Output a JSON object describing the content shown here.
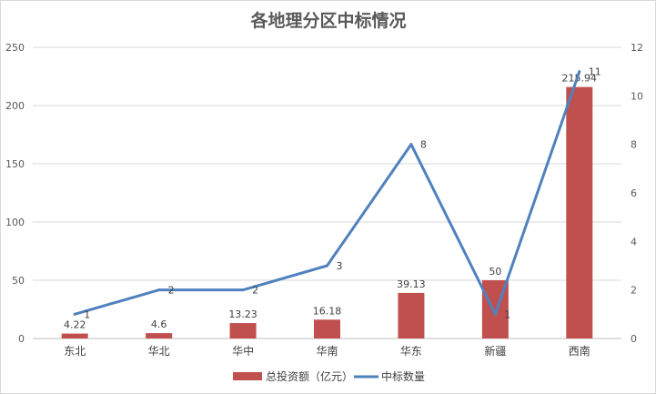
{
  "chart_data": {
    "type": "bar",
    "title": "各地理分区中标情况",
    "categories": [
      "东北",
      "华北",
      "华中",
      "华南",
      "华东",
      "新疆",
      "西南"
    ],
    "series": [
      {
        "name": "总投资额（亿元）",
        "type": "bar",
        "axis": "left",
        "values": [
          4.22,
          4.6,
          13.23,
          16.18,
          39.13,
          50,
          215.94
        ],
        "labels": [
          "4.22",
          "4.6",
          "13.23",
          "16.18",
          "39.13",
          "50",
          "215.94"
        ],
        "color": "#c0504d"
      },
      {
        "name": "中标数量",
        "type": "line",
        "axis": "right",
        "values": [
          1,
          2,
          2,
          3,
          8,
          1,
          11
        ],
        "labels": [
          "1",
          "2",
          "2",
          "3",
          "8",
          "1",
          "11"
        ],
        "color": "#4f81bd"
      }
    ],
    "y_left": {
      "min": 0,
      "max": 250,
      "ticks": [
        "0",
        "50",
        "100",
        "150",
        "200",
        "250"
      ]
    },
    "y_right": {
      "min": 0,
      "max": 12,
      "ticks": [
        "0",
        "2",
        "4",
        "6",
        "8",
        "10",
        "12"
      ]
    },
    "grid": true,
    "legend_position": "bottom"
  }
}
